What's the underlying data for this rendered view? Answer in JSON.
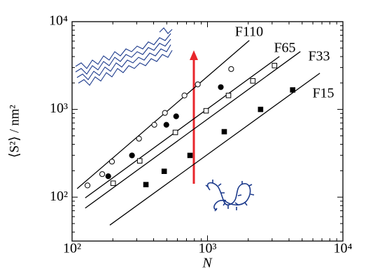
{
  "chart_data": {
    "type": "scatter",
    "x_label": "N",
    "y_label": "⟨S²⟩ / nm²",
    "xscale": "log",
    "yscale": "log",
    "xlim": [
      100,
      10000
    ],
    "ylim": [
      31.6,
      10000
    ],
    "xticks": [
      {
        "value": 100,
        "label": "10²"
      },
      {
        "value": 1000,
        "label": "10³"
      },
      {
        "value": 10000,
        "label": "10⁴"
      }
    ],
    "yticks": [
      {
        "value": 100,
        "label": "10²"
      },
      {
        "value": 1000,
        "label": "10³"
      },
      {
        "value": 10000,
        "label": "10⁴"
      }
    ],
    "series": [
      {
        "name": "F110",
        "marker": "circle",
        "filled": false,
        "color": "#000000",
        "x": [
          130,
          167,
          197,
          312,
          405,
          485,
          676,
          848,
          1496
        ],
        "values": [
          136,
          183,
          254,
          464,
          668,
          912,
          1442,
          1930,
          2884
        ],
        "fit": {
          "x": [
            109,
            2036
          ],
          "y": [
            125,
            6105
          ]
        }
      },
      {
        "name": "F65",
        "marker": "circle",
        "filled": true,
        "color": "#000000",
        "x": [
          185,
          277,
          497,
          587,
          1254
        ],
        "values": [
          173,
          299,
          668,
          834,
          1795
        ],
        "fit": {
          "x": [
            125,
            3396
          ],
          "y": [
            98,
            4009
          ]
        }
      },
      {
        "name": "F33",
        "marker": "square",
        "filled": false,
        "color": "#000000",
        "x": [
          201,
          316,
          579,
          977,
          1429,
          2163,
          3126
        ],
        "values": [
          144,
          259,
          547,
          964,
          1442,
          2113,
          3162
        ],
        "fit": {
          "x": [
            125,
            4853
          ],
          "y": [
            75,
            4560
          ]
        }
      },
      {
        "name": "F15",
        "marker": "square",
        "filled": true,
        "color": "#000000",
        "x": [
          351,
          479,
          743,
          1330,
          2466,
          4256
        ],
        "values": [
          139,
          197,
          299,
          557,
          1000,
          1667
        ],
        "fit": {
          "x": [
            190,
            6761
          ],
          "y": [
            48,
            2588
          ]
        }
      }
    ]
  }
}
